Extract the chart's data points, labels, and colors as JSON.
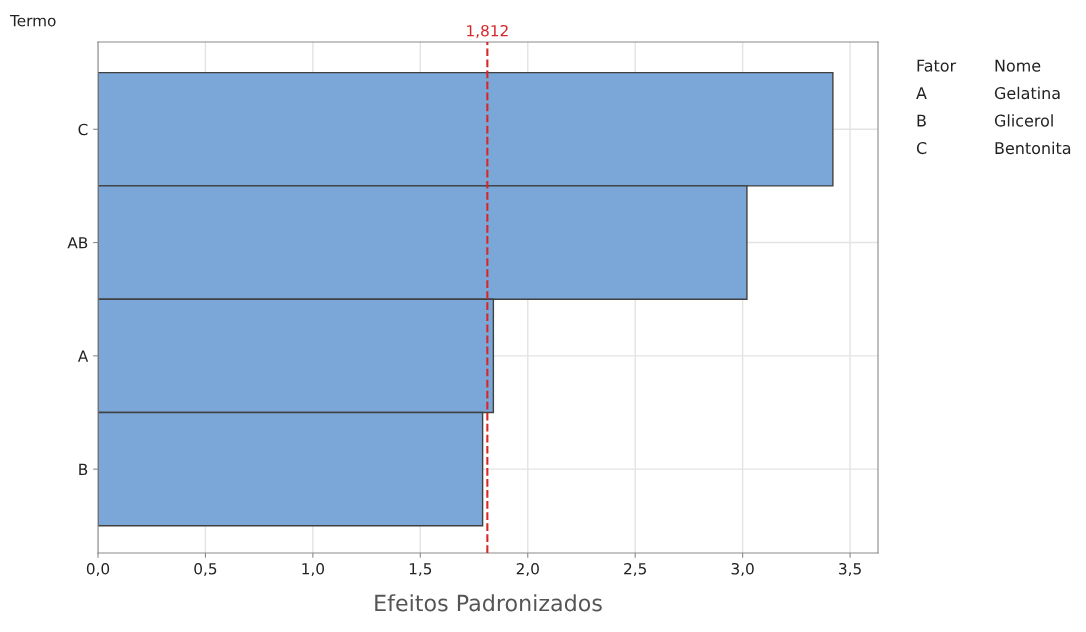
{
  "chart_data": {
    "type": "bar",
    "orientation": "horizontal",
    "xlabel": "Efeitos Padronizados",
    "ylabel": "Termo",
    "categories": [
      "C",
      "AB",
      "A",
      "B"
    ],
    "values": [
      3.42,
      3.02,
      1.84,
      1.79
    ],
    "color": "#7ba7d8",
    "xlim": [
      0,
      3.63
    ],
    "xticks": [
      {
        "value": 0,
        "label": "0,0"
      },
      {
        "value": 0.5,
        "label": "0,5"
      },
      {
        "value": 1,
        "label": "1,0"
      },
      {
        "value": 1.5,
        "label": "1,5"
      },
      {
        "value": 2,
        "label": "2,0"
      },
      {
        "value": 2.5,
        "label": "2,5"
      },
      {
        "value": 3,
        "label": "3,0"
      },
      {
        "value": 3.5,
        "label": "3,5"
      }
    ],
    "grid": true,
    "ref_lines": [
      {
        "axis": "x",
        "value": 1.812,
        "label": "1,812",
        "color": "#d62728",
        "line_style": "dashed"
      }
    ],
    "annotations": [
      "Fator",
      "Nome",
      "A",
      "Gelatina",
      "B",
      "Glicerol",
      "C",
      "Bentonita"
    ]
  }
}
